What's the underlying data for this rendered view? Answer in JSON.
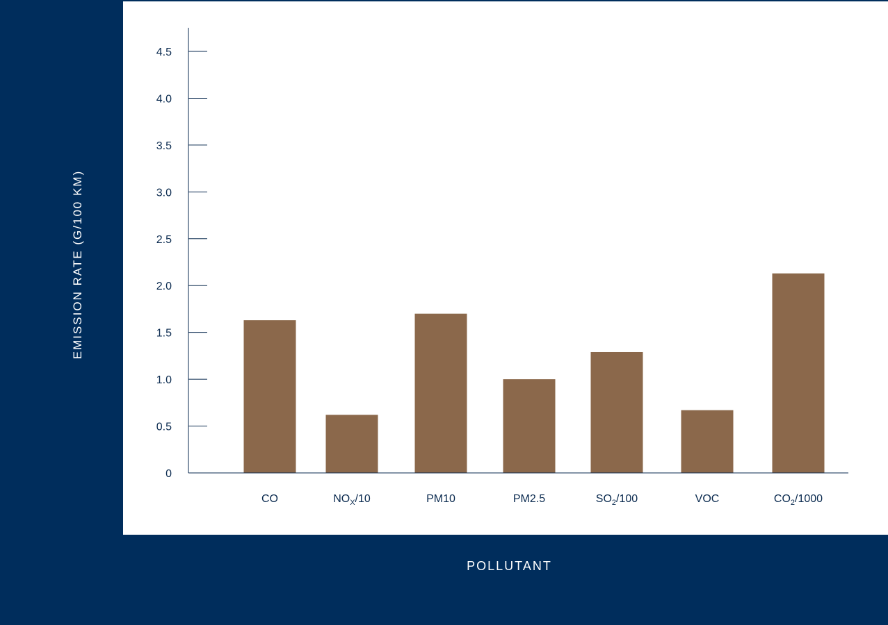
{
  "colors": {
    "background": "#002d5c",
    "panel": "#ffffff",
    "bar": "#8b684b",
    "axis": "#0a2a4f",
    "text": "#0a2a4f"
  },
  "chart_data": {
    "type": "bar",
    "xlabel": "POLLUTANT",
    "ylabel": "EMISSION RATE (G/100 KM)",
    "categories": [
      "CO",
      "NOx/10",
      "PM10",
      "PM2.5",
      "SO2/100",
      "VOC",
      "CO2/1000"
    ],
    "category_labels": [
      {
        "base": "CO",
        "sub": "",
        "suffix": ""
      },
      {
        "base": "NO",
        "sub": "X",
        "suffix": "/10"
      },
      {
        "base": "PM10",
        "sub": "",
        "suffix": ""
      },
      {
        "base": "PM2.5",
        "sub": "",
        "suffix": ""
      },
      {
        "base": "SO",
        "sub": "2",
        "suffix": "/100"
      },
      {
        "base": "VOC",
        "sub": "",
        "suffix": ""
      },
      {
        "base": "CO",
        "sub": "2",
        "suffix": "/1000"
      }
    ],
    "values": [
      1.63,
      0.62,
      1.7,
      1.0,
      1.29,
      0.67,
      2.13
    ],
    "ylim": [
      0,
      4.75
    ],
    "yticks": [
      0,
      0.5,
      1.0,
      1.5,
      2.0,
      2.5,
      3.0,
      3.5,
      4.0,
      4.5
    ],
    "ytick_labels": [
      "0",
      "0.5",
      "1.0",
      "1.5",
      "2.0",
      "2.5",
      "3.0",
      "3.5",
      "4.0",
      "4.5"
    ],
    "grid": false,
    "legend": "none"
  }
}
